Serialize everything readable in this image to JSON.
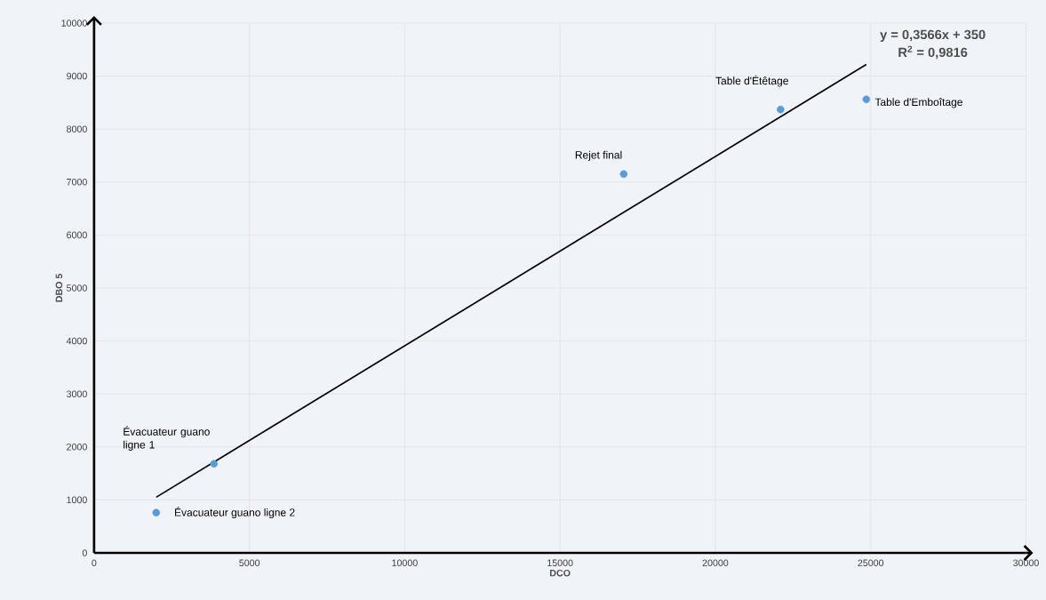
{
  "chart_data": {
    "type": "scatter",
    "xlabel": "DCO",
    "ylabel": "DBO 5",
    "xlim": [
      0,
      30000
    ],
    "ylim": [
      0,
      10000
    ],
    "xticks": [
      0,
      5000,
      10000,
      15000,
      20000,
      25000,
      30000
    ],
    "yticks": [
      0,
      1000,
      2000,
      3000,
      4000,
      5000,
      6000,
      7000,
      8000,
      9000,
      10000
    ],
    "grid": true,
    "line_style": "solid",
    "series": [
      {
        "marker": "circle",
        "color": "#5b9bd5",
        "x": [
          2000,
          3860,
          17050,
          22100,
          24860
        ],
        "values": [
          760,
          1680,
          7150,
          8370,
          8560
        ]
      },
      {
        "type": "line",
        "marker": "none",
        "color": "#000000",
        "x": [
          2000,
          24860
        ],
        "values": [
          1050,
          9220
        ]
      }
    ],
    "annotations": [
      {
        "text": "Évacuateur guano ligne 1",
        "x": 3860,
        "y": 1680
      },
      {
        "text": "Évacuateur guano ligne 2",
        "x": 2000,
        "y": 760
      },
      {
        "text": "Rejet final",
        "x": 17050,
        "y": 7150
      },
      {
        "text": "Table d'Étêtage",
        "x": 22100,
        "y": 8370
      },
      {
        "text": "Table d'Emboîtage",
        "x": 24860,
        "y": 8560
      },
      "y = 0,3566x + 350",
      "R$^{2}$ = 0,9816"
    ]
  }
}
